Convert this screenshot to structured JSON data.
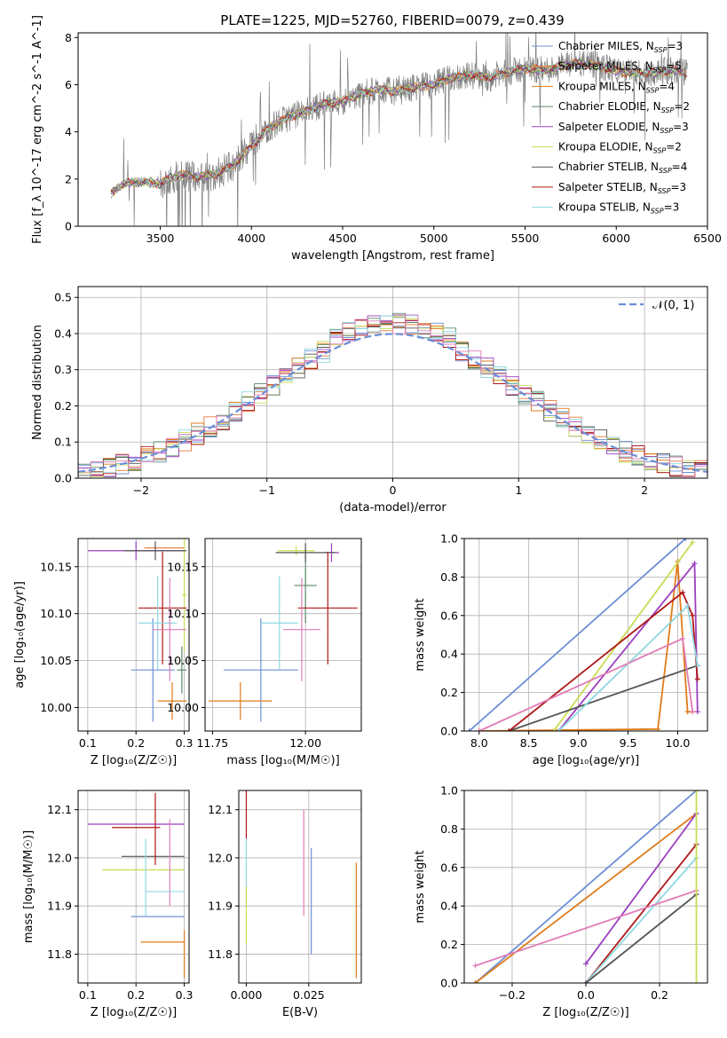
{
  "figure_title": "PLATE=1225, MJD=52760, FIBERID=0079, z=0.439",
  "colors": {
    "Chabrier MILES": "#6b8fd6",
    "Salpeter MILES": "#e8793a",
    "Kroupa MILES": "#e07b1a",
    "Chabrier ELODIE": "#5a8a6a",
    "Salpeter ELODIE": "#9b3fc0",
    "Kroupa ELODIE": "#c9dc55",
    "Chabrier STELIB": "#555555",
    "Salpeter STELIB": "#b01818",
    "Kroupa STELIB": "#8fd8e0",
    "pink": "#e07cb8",
    "data": "#7f7f7f"
  },
  "chart_data": [
    {
      "id": "spectrum",
      "type": "line",
      "title": "PLATE=1225, MJD=52760, FIBERID=0079, z=0.439",
      "xlabel": "wavelength [Angstrom, rest frame]",
      "ylabel": "Flux [f_λ 10^-17 erg cm^-2 s^-1 A^-1]",
      "xlim": [
        3050,
        6500
      ],
      "ylim": [
        0,
        8.2
      ],
      "xticks": [
        3500,
        4000,
        4500,
        5000,
        5500,
        6000,
        6500
      ],
      "yticks": [
        0,
        2,
        4,
        6,
        8
      ],
      "legend_position": "upper-right",
      "legend": [
        {
          "label": "Chabrier MILES, N",
          "sub": "SSP",
          "tail": "=3"
        },
        {
          "label": "Salpeter MILES, N",
          "sub": "SSP",
          "tail": "=5"
        },
        {
          "label": "Kroupa MILES, N",
          "sub": "SSP",
          "tail": "=4"
        },
        {
          "label": "Chabrier ELODIE, N",
          "sub": "SSP",
          "tail": "=2"
        },
        {
          "label": "Salpeter ELODIE, N",
          "sub": "SSP",
          "tail": "=3"
        },
        {
          "label": "Kroupa ELODIE, N",
          "sub": "SSP",
          "tail": "=2"
        },
        {
          "label": "Chabrier STELIB, N",
          "sub": "SSP",
          "tail": "=4"
        },
        {
          "label": "Salpeter STELIB, N",
          "sub": "SSP",
          "tail": "=3"
        },
        {
          "label": "Kroupa STELIB, N",
          "sub": "SSP",
          "tail": "=3"
        }
      ],
      "continuum": [
        [
          3230,
          1.4
        ],
        [
          3300,
          1.8
        ],
        [
          3400,
          1.9
        ],
        [
          3500,
          1.8
        ],
        [
          3600,
          2.2
        ],
        [
          3700,
          2.1
        ],
        [
          3800,
          2.2
        ],
        [
          3900,
          2.6
        ],
        [
          4000,
          3.4
        ],
        [
          4100,
          4.2
        ],
        [
          4200,
          4.6
        ],
        [
          4300,
          4.9
        ],
        [
          4400,
          5.2
        ],
        [
          4500,
          5.3
        ],
        [
          4600,
          5.6
        ],
        [
          4700,
          5.8
        ],
        [
          4800,
          5.7
        ],
        [
          4900,
          5.9
        ],
        [
          5000,
          6.0
        ],
        [
          5100,
          6.3
        ],
        [
          5200,
          6.4
        ],
        [
          5300,
          6.3
        ],
        [
          5400,
          6.5
        ],
        [
          5500,
          6.7
        ],
        [
          5600,
          6.6
        ],
        [
          5700,
          6.8
        ],
        [
          5800,
          6.9
        ],
        [
          5900,
          6.8
        ],
        [
          6000,
          6.6
        ],
        [
          6100,
          6.5
        ],
        [
          6200,
          6.5
        ],
        [
          6300,
          6.6
        ],
        [
          6390,
          6.5
        ]
      ]
    },
    {
      "id": "residuals",
      "type": "line",
      "xlabel": "(data-model)/error",
      "ylabel": "Normed distribution",
      "xlim": [
        -2.5,
        2.5
      ],
      "ylim": [
        0,
        0.53
      ],
      "xticks": [
        -2,
        -1,
        0,
        1,
        2
      ],
      "yticks": [
        0.0,
        0.1,
        0.2,
        0.3,
        0.4,
        0.5
      ],
      "grid": true,
      "legend_position": "upper-right",
      "legend": [
        {
          "label": "𝒩(0, 1)",
          "style": "dashed"
        }
      ]
    },
    {
      "id": "age-vs-Z",
      "type": "scatter",
      "xlabel": "Z [log₁₀(Z/Z☉)]",
      "ylabel": "age  [log₁₀(age/yr)]",
      "xlim": [
        0.08,
        0.31
      ],
      "ylim": [
        9.975,
        10.18
      ],
      "xticks": [
        0.1,
        0.2,
        0.3
      ],
      "yticks": [
        10.0,
        10.05,
        10.1,
        10.15
      ],
      "grid": true,
      "points": [
        {
          "color": "Chabrier MILES",
          "x": 0.235,
          "xerr": 0.045,
          "y": 10.04,
          "yerr": 0.055
        },
        {
          "color": "Salpeter MILES",
          "x": 0.3,
          "xerr": 0.0,
          "y": 10.17,
          "yerr": 0.0
        },
        {
          "color": "Kroupa MILES",
          "x": 0.275,
          "xerr": 0.03,
          "y": 10.007,
          "yerr": 0.02
        },
        {
          "color": "Chabrier ELODIE",
          "x": 0.295,
          "xerr": 0.01,
          "y": 10.04,
          "yerr": 0.025
        },
        {
          "color": "Salpeter ELODIE",
          "x": 0.2,
          "xerr": 0.1,
          "y": 10.167,
          "yerr": 0.01
        },
        {
          "color": "Kroupa ELODIE",
          "x": 0.3,
          "xerr": 0.005,
          "y": 10.12,
          "yerr": 0.06
        },
        {
          "color": "Chabrier STELIB",
          "x": 0.24,
          "xerr": 0.065,
          "y": 10.167,
          "yerr": 0.01
        },
        {
          "color": "Salpeter STELIB",
          "x": 0.255,
          "xerr": 0.05,
          "y": 10.106,
          "yerr": 0.06
        },
        {
          "color": "Kroupa STELIB",
          "x": 0.245,
          "xerr": 0.04,
          "y": 10.09,
          "yerr": 0.05
        },
        {
          "color": "pink",
          "x": 0.27,
          "xerr": 0.035,
          "y": 10.083,
          "yerr": 0.055
        }
      ]
    },
    {
      "id": "age-vs-mass",
      "type": "scatter",
      "xlabel": "mass [log₁₀(M/M☉)]",
      "ylabel": "",
      "xlim": [
        11.73,
        12.15
      ],
      "ylim": [
        9.975,
        10.18
      ],
      "xticks": [
        11.75,
        12.0
      ],
      "yticks": [
        10.0,
        10.05,
        10.1,
        10.15
      ],
      "grid": true,
      "points": [
        {
          "color": "Chabrier MILES",
          "x": 11.88,
          "xerr": 0.1,
          "y": 10.04,
          "yerr": 0.055
        },
        {
          "color": "Kroupa MILES",
          "x": 11.825,
          "xerr": 0.085,
          "y": 10.007,
          "yerr": 0.02
        },
        {
          "color": "Chabrier ELODIE",
          "x": 12.0,
          "xerr": 0.03,
          "y": 10.13,
          "yerr": 0.04
        },
        {
          "color": "Salpeter ELODIE",
          "x": 12.07,
          "xerr": 0.02,
          "y": 10.165,
          "yerr": 0.01
        },
        {
          "color": "Kroupa ELODIE",
          "x": 11.975,
          "xerr": 0.05,
          "y": 10.167,
          "yerr": 0.005
        },
        {
          "color": "Chabrier STELIB",
          "x": 12.0,
          "xerr": 0.08,
          "y": 10.165,
          "yerr": 0.01
        },
        {
          "color": "Salpeter STELIB",
          "x": 12.06,
          "xerr": 0.08,
          "y": 10.106,
          "yerr": 0.06
        },
        {
          "color": "Kroupa STELIB",
          "x": 11.93,
          "xerr": 0.05,
          "y": 10.09,
          "yerr": 0.05
        },
        {
          "color": "pink",
          "x": 11.99,
          "xerr": 0.05,
          "y": 10.083,
          "yerr": 0.055
        }
      ]
    },
    {
      "id": "mass-weight-vs-age",
      "type": "line",
      "xlabel": "age  [log₁₀(age/yr)]",
      "ylabel": "mass weight",
      "xlim": [
        7.85,
        10.3
      ],
      "ylim": [
        0,
        1.0
      ],
      "xticks": [
        8.0,
        8.5,
        9.0,
        9.5,
        10.0
      ],
      "yticks": [
        0.0,
        0.2,
        0.4,
        0.6,
        0.8,
        1.0
      ],
      "grid": true,
      "series": [
        {
          "color": "Chabrier MILES",
          "x": [
            7.9,
            10.08
          ],
          "y": [
            0.0,
            1.0
          ]
        },
        {
          "color": "Kroupa MILES",
          "x": [
            8.0,
            9.8,
            10.0,
            10.1,
            10.15
          ],
          "y": [
            0.0,
            0.01,
            0.88,
            0.1,
            0.1
          ]
        },
        {
          "color": "Kroupa ELODIE",
          "x": [
            8.75,
            10.15
          ],
          "y": [
            0.0,
            0.98
          ]
        },
        {
          "color": "Salpeter ELODIE",
          "x": [
            8.8,
            10.17,
            10.2
          ],
          "y": [
            0.0,
            0.87,
            0.1
          ]
        },
        {
          "color": "Chabrier STELIB",
          "x": [
            8.3,
            10.2
          ],
          "y": [
            0.0,
            0.34
          ]
        },
        {
          "color": "Salpeter STELIB",
          "x": [
            8.3,
            10.05,
            10.15,
            10.2
          ],
          "y": [
            0.0,
            0.72,
            0.6,
            0.27
          ]
        },
        {
          "color": "Kroupa STELIB",
          "x": [
            8.8,
            10.1,
            10.2
          ],
          "y": [
            0.0,
            0.65,
            0.34
          ]
        },
        {
          "color": "pink",
          "x": [
            8.0,
            10.05,
            10.15
          ],
          "y": [
            0.0,
            0.48,
            0.1
          ]
        }
      ]
    },
    {
      "id": "mass-vs-Z",
      "type": "scatter",
      "xlabel": "Z [log₁₀(Z/Z☉)]",
      "ylabel": "mass [log₁₀(M/M☉)]",
      "xlim": [
        0.08,
        0.31
      ],
      "ylim": [
        11.74,
        12.14
      ],
      "xticks": [
        0.1,
        0.2,
        0.3
      ],
      "yticks": [
        11.8,
        11.9,
        12.0,
        12.1
      ],
      "grid": true,
      "points": [
        {
          "color": "Chabrier MILES",
          "x": 0.245,
          "xerr": 0.055,
          "y": 11.878,
          "yerr": 0.0
        },
        {
          "color": "Kroupa MILES",
          "x": 0.255,
          "xerr": 0.045,
          "y": 11.825,
          "yerr": 0.0
        },
        {
          "color": "Salpeter ELODIE",
          "x": 0.2,
          "xerr": 0.1,
          "y": 12.07,
          "yerr": 0.0
        },
        {
          "color": "Kroupa ELODIE",
          "x": 0.215,
          "xerr": 0.085,
          "y": 11.975,
          "yerr": 0.0
        },
        {
          "color": "Chabrier STELIB",
          "x": 0.235,
          "xerr": 0.065,
          "y": 12.003,
          "yerr": 0.0
        },
        {
          "color": "Salpeter STELIB",
          "x": 0.2,
          "xerr": 0.05,
          "y": 12.063,
          "yerr": 0.0
        },
        {
          "color": "Salpeter STELIB",
          "x": 0.24,
          "xerr": 0.0,
          "y": 12.06,
          "yerr": 0.075
        },
        {
          "color": "Kroupa STELIB",
          "x": 0.22,
          "xerr": 0.0,
          "y": 11.96,
          "yerr": 0.08
        },
        {
          "color": "pink",
          "x": 0.27,
          "xerr": 0.0,
          "y": 11.99,
          "yerr": 0.09
        },
        {
          "color": "Kroupa MILES",
          "x": 0.3,
          "xerr": 0.0,
          "y": 11.8,
          "yerr": 0.05
        },
        {
          "color": "Kroupa STELIB",
          "x": 0.26,
          "xerr": 0.04,
          "y": 11.93,
          "yerr": 0.0
        }
      ]
    },
    {
      "id": "mass-vs-ebv",
      "type": "scatter",
      "xlabel": "E(B-V)",
      "ylabel": "",
      "xlim": [
        -0.003,
        0.046
      ],
      "ylim": [
        11.74,
        12.14
      ],
      "xticks": [
        0.0,
        0.025
      ],
      "xticklabels": [
        "0.000",
        "0.025"
      ],
      "yticks": [
        11.8,
        11.9,
        12.0,
        12.1
      ],
      "grid": true,
      "points": [
        {
          "color": "Salpeter STELIB",
          "x": 0.0,
          "xerr": 0.0,
          "y": 12.09,
          "yerr": 0.05
        },
        {
          "color": "Kroupa STELIB",
          "x": 0.0,
          "xerr": 0.0,
          "y": 11.97,
          "yerr": 0.07
        },
        {
          "color": "Kroupa ELODIE",
          "x": 0.0,
          "xerr": 0.0,
          "y": 11.88,
          "yerr": 0.06
        },
        {
          "color": "pink",
          "x": 0.023,
          "xerr": 0.0,
          "y": 11.99,
          "yerr": 0.11
        },
        {
          "color": "Chabrier MILES",
          "x": 0.026,
          "xerr": 0.0,
          "y": 11.91,
          "yerr": 0.11
        },
        {
          "color": "Kroupa MILES",
          "x": 0.044,
          "xerr": 0.0,
          "y": 11.87,
          "yerr": 0.12
        }
      ]
    },
    {
      "id": "mass-weight-vs-Z",
      "type": "line",
      "xlabel": "Z [log₁₀(Z/Z☉)]",
      "ylabel": "mass weight",
      "xlim": [
        -0.33,
        0.33
      ],
      "ylim": [
        0,
        1.0
      ],
      "xticks": [
        -0.2,
        0.0,
        0.2
      ],
      "yticks": [
        0.0,
        0.2,
        0.4,
        0.6,
        0.8,
        1.0
      ],
      "grid": true,
      "series": [
        {
          "color": "Chabrier MILES",
          "x": [
            -0.3,
            0.3
          ],
          "y": [
            0.0,
            1.0
          ]
        },
        {
          "color": "Kroupa MILES",
          "x": [
            -0.3,
            0.3
          ],
          "y": [
            0.0,
            0.88
          ]
        },
        {
          "color": "Salpeter ELODIE",
          "x": [
            0.0,
            0.3
          ],
          "y": [
            0.1,
            0.88
          ]
        },
        {
          "color": "Salpeter STELIB",
          "x": [
            0.0,
            0.3
          ],
          "y": [
            0.0,
            0.72
          ]
        },
        {
          "color": "Kroupa STELIB",
          "x": [
            0.0,
            0.3
          ],
          "y": [
            0.0,
            0.65
          ]
        },
        {
          "color": "pink",
          "x": [
            -0.3,
            0.3
          ],
          "y": [
            0.09,
            0.48
          ]
        },
        {
          "color": "Chabrier STELIB",
          "x": [
            0.0,
            0.3
          ],
          "y": [
            0.0,
            0.46
          ]
        },
        {
          "color": "Kroupa ELODIE",
          "x": [
            0.3,
            0.3
          ],
          "y": [
            0.0,
            1.0
          ]
        }
      ]
    }
  ]
}
